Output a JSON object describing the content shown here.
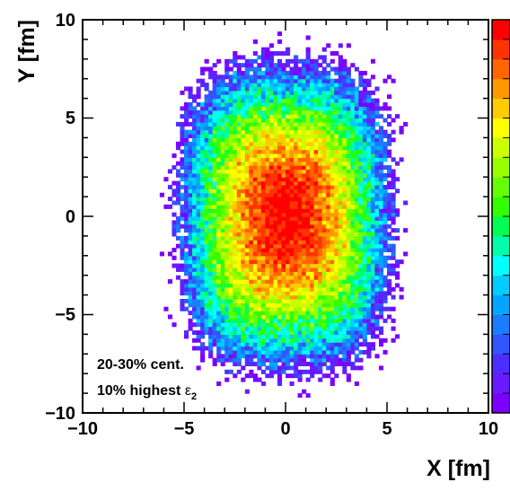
{
  "chart_data": {
    "type": "heatmap",
    "xlabel": "X [fm]",
    "ylabel": "Y [fm]",
    "xlim": [
      -10,
      10
    ],
    "ylim": [
      -10,
      10
    ],
    "xticks": [
      "−10",
      "−5",
      "0",
      "5",
      "10"
    ],
    "yticks": [
      "−10",
      "−5",
      "0",
      "5",
      "10"
    ],
    "annotations": {
      "centrality": "20-30% cent.",
      "selection_prefix": "10% highest ",
      "selection_symbol": "ε",
      "selection_subscript": "2"
    },
    "distribution": {
      "shape": "elliptical density, elongated along Y",
      "center": [
        0,
        0
      ],
      "edge_half_width_x": 5.2,
      "edge_half_width_y": 7.8,
      "core_half_width_x": 2.0,
      "core_half_width_y": 3.2
    },
    "palette": [
      "#7b00ff",
      "#6a1aff",
      "#4d2eff",
      "#3355ff",
      "#1a7dff",
      "#00a6ff",
      "#00ccff",
      "#00ffff",
      "#00ffaa",
      "#00ff55",
      "#33ff00",
      "#66ff00",
      "#99ff00",
      "#ccff00",
      "#ffff00",
      "#ffcc00",
      "#ff9900",
      "#ff6600",
      "#ff3300",
      "#ff0000"
    ],
    "grid": false,
    "colorbar": true
  }
}
